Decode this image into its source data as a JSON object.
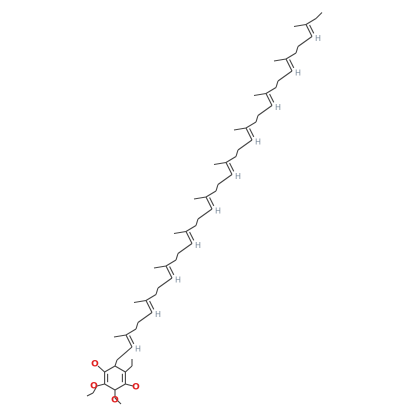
{
  "atoms": {
    "oxygen": [
      "O",
      "O",
      "O",
      "O"
    ],
    "hydrogen": [
      "H",
      "H",
      "H",
      "H",
      "H",
      "H",
      "H",
      "H",
      "H",
      "H"
    ]
  }
}
